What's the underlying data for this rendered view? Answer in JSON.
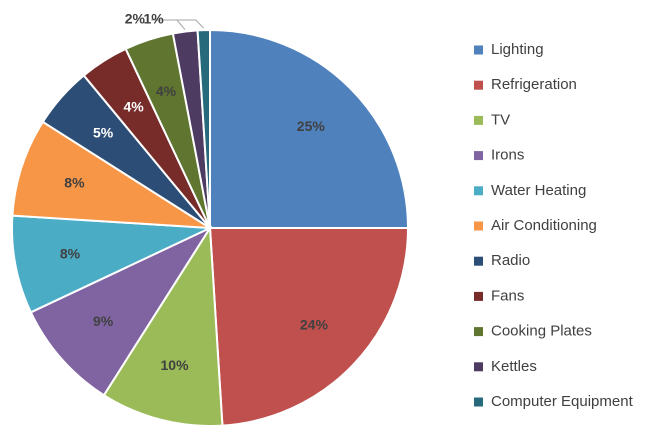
{
  "chart_data": {
    "type": "pie",
    "categories": [
      "Lighting",
      "Refrigeration",
      "TV",
      "Irons",
      "Water Heating",
      "Air Conditioning",
      "Radio",
      "Fans",
      "Cooking Plates",
      "Kettles",
      "Computer Equipment"
    ],
    "values": [
      25,
      24,
      10,
      9,
      8,
      8,
      5,
      4,
      4,
      2,
      1
    ],
    "value_labels": [
      "25%",
      "24%",
      "10%",
      "9%",
      "8%",
      "8%",
      "5%",
      "4%",
      "4%",
      "2%",
      "1%"
    ],
    "colors": [
      "#4f81bd",
      "#c0504d",
      "#9bbb59",
      "#8064a2",
      "#4bacc6",
      "#f79646",
      "#2c4d75",
      "#772c2a",
      "#5f7530",
      "#4d3b62",
      "#276a7c"
    ],
    "legend": "right"
  }
}
